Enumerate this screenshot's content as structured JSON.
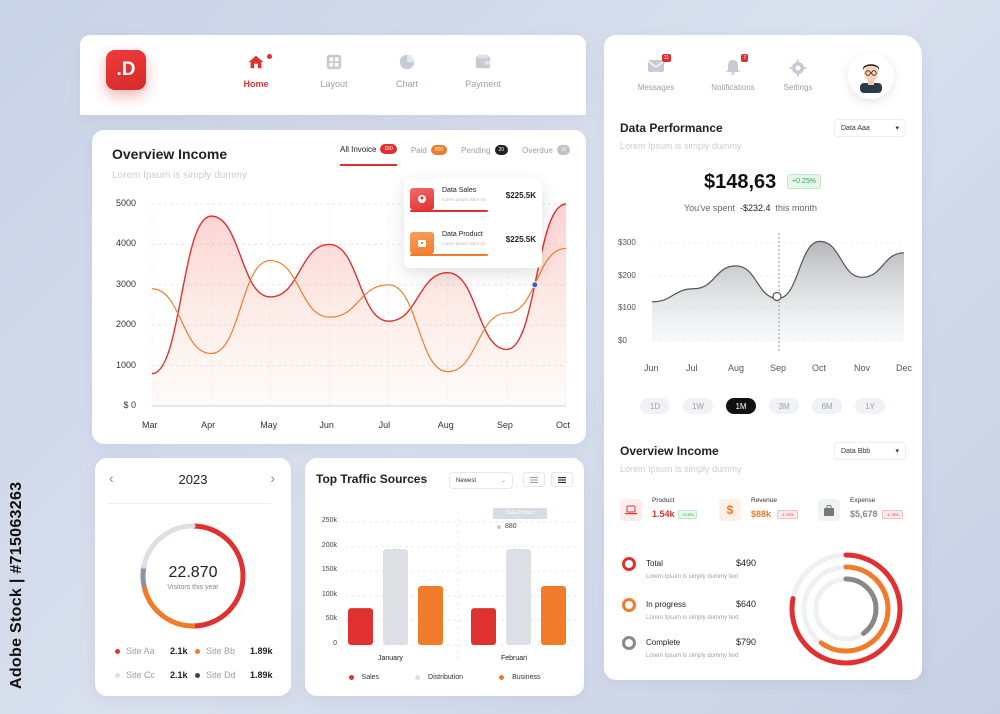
{
  "watermark": "Adobe Stock | #715063263",
  "logo": ".D",
  "nav": [
    {
      "label": "Home",
      "icon": "home-icon"
    },
    {
      "label": "Layout",
      "icon": "layout-icon"
    },
    {
      "label": "Chart",
      "icon": "pie-chart-icon"
    },
    {
      "label": "Payment",
      "icon": "wallet-icon"
    }
  ],
  "overview": {
    "title": "Overview Income",
    "subtitle": "Lorem Ipsum is simply dummy",
    "tabs": [
      {
        "label": "All Invoice",
        "badge": "150",
        "color": "#e03131"
      },
      {
        "label": "Paid",
        "badge": "800",
        "color": "#f07c2a"
      },
      {
        "label": "Pending",
        "badge": "20",
        "color": "#222222"
      },
      {
        "label": "Overdue",
        "badge": "15",
        "color": "#bfc3c9"
      }
    ],
    "popup": [
      {
        "title": "Data Sales",
        "sub": "Lorem ipsum dolor sit",
        "value": "$225.5K",
        "color": "#e03131"
      },
      {
        "title": "Data Product",
        "sub": "Lorem ipsum dolor sit",
        "value": "$225.5K",
        "color": "#f07c2a"
      }
    ]
  },
  "chart_data": [
    {
      "type": "line",
      "categories": [
        "Mar",
        "Apr",
        "May",
        "Jun",
        "Jul",
        "Aug",
        "Sep",
        "Oct"
      ],
      "ylim": [
        0,
        5000
      ],
      "ytick_labels": [
        "$ 0",
        "1000",
        "2000",
        "3000",
        "4000",
        "5000"
      ],
      "series": [
        {
          "color": "#e03131",
          "values": [
            800,
            4700,
            2700,
            4000,
            2100,
            3300,
            1400,
            5000
          ]
        },
        {
          "color": "#f07c2a",
          "values": [
            2900,
            1300,
            3600,
            2200,
            3000,
            850,
            2300,
            3900
          ]
        }
      ],
      "colors": [
        "#e03131",
        "#f07c2a"
      ]
    },
    {
      "type": "bar",
      "categories": [
        "January",
        "Februari"
      ],
      "ylim": [
        0,
        250000
      ],
      "ytick_labels": [
        "0",
        "50k",
        "100k",
        "150k",
        "200k",
        "250k"
      ],
      "series": [
        {
          "name": "Sales",
          "values": [
            75000,
            75000
          ]
        },
        {
          "name": "Distribution",
          "values": [
            195000,
            195000
          ]
        },
        {
          "name": "Business",
          "values": [
            120000,
            120000
          ]
        }
      ],
      "colors": [
        "#e03131",
        "#dcdfe4",
        "#f07c2a"
      ],
      "tooltip": {
        "title": "Data Product",
        "value": "880"
      }
    },
    {
      "type": "area",
      "categories": [
        "Jun",
        "Jul",
        "Aug",
        "Sep",
        "Oct",
        "Nov",
        "Dec"
      ],
      "ylim": [
        0,
        300
      ],
      "ytick_labels": [
        "$0",
        "$100",
        "$200",
        "$300"
      ],
      "series": [
        {
          "values": [
            120,
            160,
            230,
            130,
            305,
            195,
            270
          ]
        }
      ],
      "colors": [
        "#555555"
      ]
    }
  ],
  "year": {
    "label": "2023",
    "prev": "‹",
    "next": "›",
    "value": "22.870",
    "caption": "Visitors this year",
    "donut": [
      {
        "value": 0.5,
        "color": "#e03131"
      },
      {
        "value": 0.22,
        "color": "#f07c2a"
      },
      {
        "value": 0.06,
        "color": "#8a93a6"
      },
      {
        "value": 0.22,
        "color": "#dcdfe4"
      }
    ],
    "legend": [
      {
        "name": "Site Aa",
        "value": "2.1k",
        "color": "#e03131"
      },
      {
        "name": "Site Bb",
        "value": "1.89k",
        "color": "#f07c2a"
      },
      {
        "name": "Site Cc",
        "value": "2.1k",
        "color": "#dcdfe4"
      },
      {
        "name": "Site Dd",
        "value": "1.89k",
        "color": "#444444"
      }
    ]
  },
  "traffic": {
    "title": "Top Traffic Sources",
    "filter": "Newest"
  },
  "right": {
    "nav": [
      {
        "label": "Messages",
        "badge": "11",
        "icon": "mail-icon"
      },
      {
        "label": "Notifications",
        "badge": "7",
        "icon": "bell-icon"
      },
      {
        "label": "Settings",
        "badge": "",
        "icon": "gear-icon"
      }
    ],
    "perf_title": "Data Performance",
    "perf_sub": "Lorem Ipsum is simply dummy",
    "perf_dropdown": "Data Aaa",
    "big_value": "$148,63",
    "change": "+0.25%",
    "spent_prefix": "You've spent",
    "spent_value": "-$232.4",
    "spent_suffix": "this month",
    "ranges": [
      "1D",
      "1W",
      "1M",
      "3M",
      "6M",
      "1Y"
    ],
    "active_range": "1M",
    "income_title": "Overview Income",
    "income_sub": "Lorem Ipsum is simply dummy",
    "income_dropdown": "Data Bbb",
    "stats": [
      {
        "name": "Product",
        "value": "1.54k",
        "badge": "+0.8%",
        "color": "#e03131",
        "badge_color": "#2bb04a",
        "icon": "laptop-icon"
      },
      {
        "name": "Revenue",
        "value": "$88k",
        "badge": "-1.75%",
        "color": "#f07c2a",
        "badge_color": "#e03131",
        "icon": "dollar-icon"
      },
      {
        "name": "Expense",
        "value": "$5,678",
        "badge": "-1.75%",
        "color": "#888888",
        "badge_color": "#e03131",
        "icon": "bag-icon"
      }
    ],
    "progress": [
      {
        "name": "Total",
        "sub": "Lorem Ipsum is simply dummy text",
        "value": "$490",
        "color": "#e03131"
      },
      {
        "name": "In progress",
        "sub": "Lorem Ipsum is simply dummy text",
        "value": "$640",
        "color": "#f07c2a"
      },
      {
        "name": "Complete",
        "sub": "Lorem Ipsum is simply dummy text",
        "value": "$790",
        "color": "#888888"
      }
    ],
    "rings": [
      {
        "value": 0.78,
        "color": "#e03131"
      },
      {
        "value": 0.6,
        "color": "#f07c2a"
      },
      {
        "value": 0.4,
        "color": "#888888"
      }
    ]
  }
}
